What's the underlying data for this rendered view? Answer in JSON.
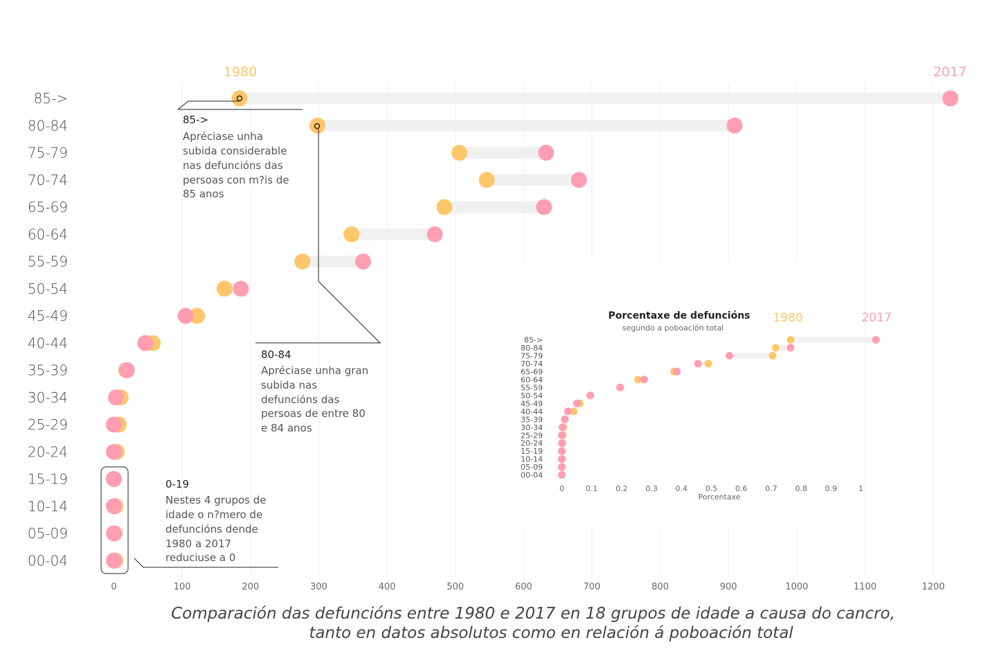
{
  "colors": {
    "c1980": "#FDC66A",
    "c2017": "#FF9EB0",
    "bar": "#F0F0F0",
    "grid": "#EEEEEE"
  },
  "caption": {
    "line1": "Comparación das defuncións entre 1980 e 2017 en 18 grupos de idade a causa do cancro,",
    "line2": "tanto en datos absolutos como en relación á poboación total"
  },
  "legend": {
    "y1980": "1980",
    "y2017": "2017"
  },
  "annotations": {
    "a85": {
      "title": "85->",
      "lines": [
        "Apréciase unha",
        "subida considerable",
        "nas defuncións das",
        "persoas con m?is de",
        "85 anos"
      ]
    },
    "a80": {
      "title": "80-84",
      "lines": [
        "Apréciase unha gran",
        "subida nas",
        "defuncións das",
        "persoas de entre 80",
        "e 84 anos"
      ]
    },
    "a019": {
      "title": "0-19",
      "lines": [
        "Nestes 4 grupos de",
        "idade o n?mero de",
        "defuncións dende",
        "1980 a 2017",
        "reduciuse a 0"
      ]
    }
  },
  "chart_data": [
    {
      "type": "dumbbell",
      "categories": [
        "85->",
        "80-84",
        "75-79",
        "70-74",
        "65-69",
        "60-64",
        "55-59",
        "50-54",
        "45-49",
        "40-44",
        "35-39",
        "30-34",
        "25-29",
        "20-24",
        "15-19",
        "10-14",
        "05-09",
        "00-04"
      ],
      "series": [
        {
          "name": "1980",
          "values": [
            184,
            298,
            506,
            546,
            484,
            348,
            276,
            162,
            122,
            57,
            18,
            10,
            7,
            4,
            0,
            2,
            1,
            2
          ]
        },
        {
          "name": "2017",
          "values": [
            1225,
            909,
            633,
            681,
            630,
            470,
            365,
            186,
            105,
            46,
            19,
            3,
            0,
            0,
            0,
            0,
            0,
            0
          ]
        }
      ],
      "xticks": [
        "0",
        "100",
        "200",
        "300",
        "400",
        "500",
        "600",
        "700",
        "800",
        "900",
        "1000",
        "1100",
        "1200"
      ],
      "xlim": [
        0,
        1250
      ],
      "grid": true
    },
    {
      "type": "dumbbell",
      "title": "Porcentaxe de defuncións",
      "subtitle": "segundo a poboación total",
      "categories": [
        "85->",
        "80-84",
        "75-79",
        "70-74",
        "65-69",
        "60-64",
        "55-59",
        "50-54",
        "45-49",
        "40-44",
        "35-39",
        "30-34",
        "25-29",
        "20-24",
        "15-19",
        "10-14",
        "05-09",
        "00-04"
      ],
      "series": [
        {
          "name": "1980",
          "values": [
            0.765,
            0.715,
            0.705,
            0.49,
            0.375,
            0.255,
            0.195,
            0.095,
            0.06,
            0.04,
            0.01,
            0.005,
            0.003,
            0.002,
            0,
            0,
            0,
            0
          ]
        },
        {
          "name": "2017",
          "values": [
            1.05,
            0.765,
            0.56,
            0.455,
            0.385,
            0.275,
            0.195,
            0.095,
            0.05,
            0.02,
            0.01,
            0.002,
            0,
            0,
            0,
            0,
            0,
            0
          ]
        }
      ],
      "xticks": [
        "0",
        "0.1",
        "0.2",
        "0.3",
        "0.4",
        "0.5",
        "0.6",
        "0.7",
        "0.8",
        "0.9",
        "1"
      ],
      "xlabel": "Porcentaxe",
      "legend": [
        "1980",
        "2017"
      ]
    }
  ]
}
